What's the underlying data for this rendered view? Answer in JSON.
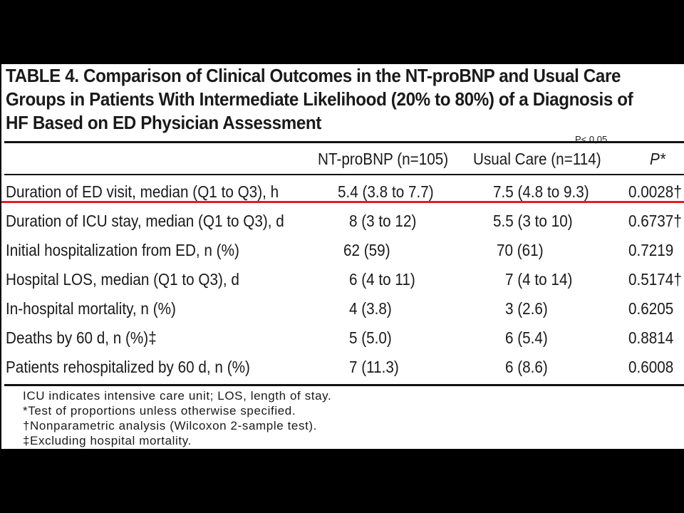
{
  "table": {
    "caption": "TABLE 4.   Comparison of Clinical Outcomes in the NT-proBNP and Usual Care Groups in Patients With Intermediate Likelihood (20% to 80%) of a Diagnosis of HF Based on ED Physician Assessment",
    "annotation": "P< 0,05",
    "headers": {
      "ntprobnp": "NT-proBNP (n=105)",
      "usual_care": "Usual Care (n=114)",
      "p": "P*"
    },
    "rows": [
      {
        "label": "Duration of ED visit, median (Q1 to Q3), h",
        "ntprobnp": "5.4 (3.8 to 7.7)",
        "usual_care": "7.5 (4.8 to 9.3)",
        "p": "0.0028†"
      },
      {
        "label": "Duration of ICU stay, median (Q1 to Q3), d",
        "ntprobnp": "8 (3 to 12)",
        "usual_care": "5.5 (3 to 10)",
        "p": "0.6737†"
      },
      {
        "label": "Initial hospitalization from ED, n (%)",
        "ntprobnp": "62 (59)",
        "usual_care": "70 (61)",
        "p": "0.7219"
      },
      {
        "label": "Hospital LOS, median (Q1 to Q3), d",
        "ntprobnp": "6 (4 to 11)",
        "usual_care": "7 (4 to 14)",
        "p": "0.5174†"
      },
      {
        "label": "In-hospital mortality, n (%)",
        "ntprobnp": "4 (3.8)",
        "usual_care": "3 (2.6)",
        "p": "0.6205"
      },
      {
        "label": "Deaths by 60 d, n (%)‡",
        "ntprobnp": "5 (5.0)",
        "usual_care": "6 (5.4)",
        "p": "0.8814"
      },
      {
        "label": "Patients rehospitalized by 60 d, n (%)",
        "ntprobnp": "7 (11.3)",
        "usual_care": "6 (8.6)",
        "p": "0.6008"
      }
    ],
    "footnotes": [
      "ICU indicates intensive care unit; LOS, length of stay.",
      "*Test of proportions unless otherwise specified.",
      "†Nonparametric analysis (Wilcoxon 2-sample test).",
      "‡Excluding hospital mortality."
    ],
    "highlight_color": "#e02020"
  }
}
